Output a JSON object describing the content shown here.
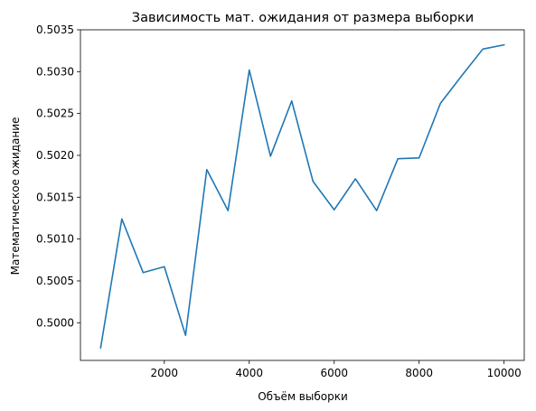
{
  "chart_data": {
    "type": "line",
    "title": "Зависимость мат. ожидания от размера выборки",
    "xlabel": "Объём выборки",
    "ylabel": "Математическое ожидание",
    "xlim": [
      25,
      10475
    ],
    "ylim": [
      0.49955,
      0.5035
    ],
    "xticks": [
      2000,
      4000,
      6000,
      8000,
      10000
    ],
    "xtick_labels": [
      "2000",
      "4000",
      "6000",
      "8000",
      "10000"
    ],
    "yticks": [
      0.5,
      0.5005,
      0.501,
      0.5015,
      0.502,
      0.5025,
      0.503,
      0.5035
    ],
    "ytick_labels": [
      "0.5000",
      "0.5005",
      "0.5010",
      "0.5015",
      "0.5020",
      "0.5025",
      "0.5030",
      "0.5035"
    ],
    "grid": false,
    "legend": false,
    "series": [
      {
        "color": "#1f77b4",
        "x": [
          500,
          1000,
          1500,
          2000,
          2500,
          3000,
          3500,
          4000,
          4500,
          5000,
          5500,
          6000,
          6500,
          7000,
          7500,
          8000,
          8500,
          9000,
          9500,
          10000
        ],
        "y": [
          0.4997,
          0.50124,
          0.5006,
          0.50067,
          0.49985,
          0.50183,
          0.50134,
          0.50302,
          0.50199,
          0.50265,
          0.50169,
          0.50135,
          0.50172,
          0.50134,
          0.50196,
          0.50197,
          0.50262,
          0.50295,
          0.50327,
          0.50332
        ]
      }
    ]
  }
}
